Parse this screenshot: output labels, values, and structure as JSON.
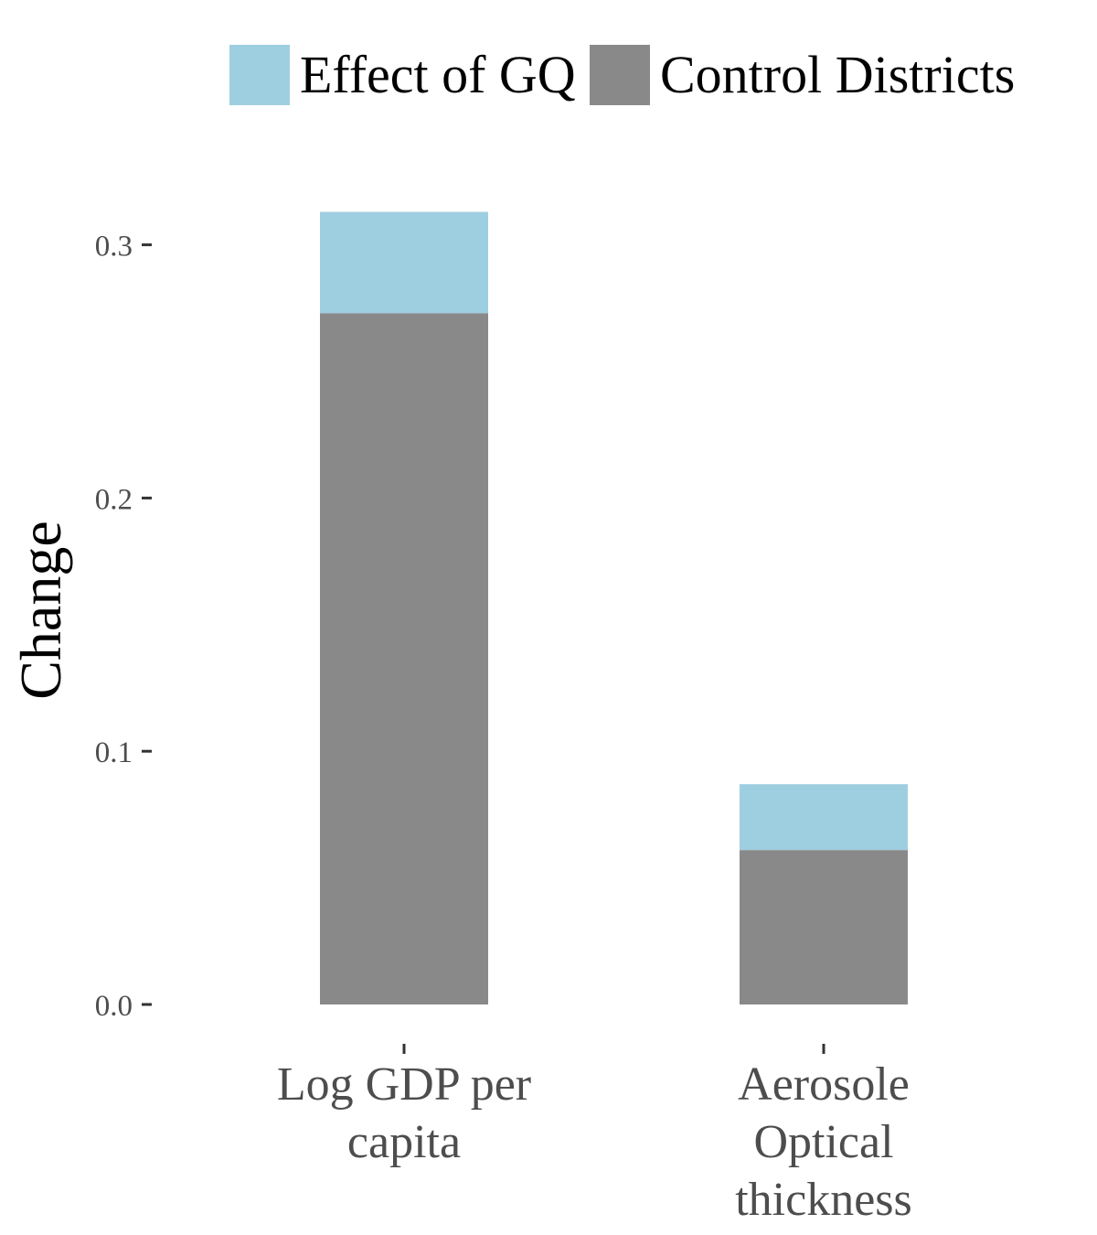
{
  "chart_data": {
    "type": "bar",
    "stacked": true,
    "categories": [
      [
        "Log GDP per",
        "capita"
      ],
      [
        "Aerosole",
        "Optical",
        "thickness"
      ]
    ],
    "series": [
      {
        "name": "Control Districts",
        "values": [
          0.273,
          0.061
        ],
        "color": "#898989"
      },
      {
        "name": "Effect of GQ",
        "values": [
          0.04,
          0.026
        ],
        "color": "#9ecfe0"
      }
    ],
    "legend_order": [
      "Effect of GQ",
      "Control Districts"
    ],
    "legend_position": "top",
    "ylabel": "Change",
    "xlabel": "",
    "ylim": [
      0.0,
      0.31
    ],
    "yticks": [
      0.0,
      0.1,
      0.2,
      0.3
    ],
    "ytick_labels": [
      "0.0",
      "0.1",
      "0.2",
      "0.3"
    ],
    "grid": false
  }
}
